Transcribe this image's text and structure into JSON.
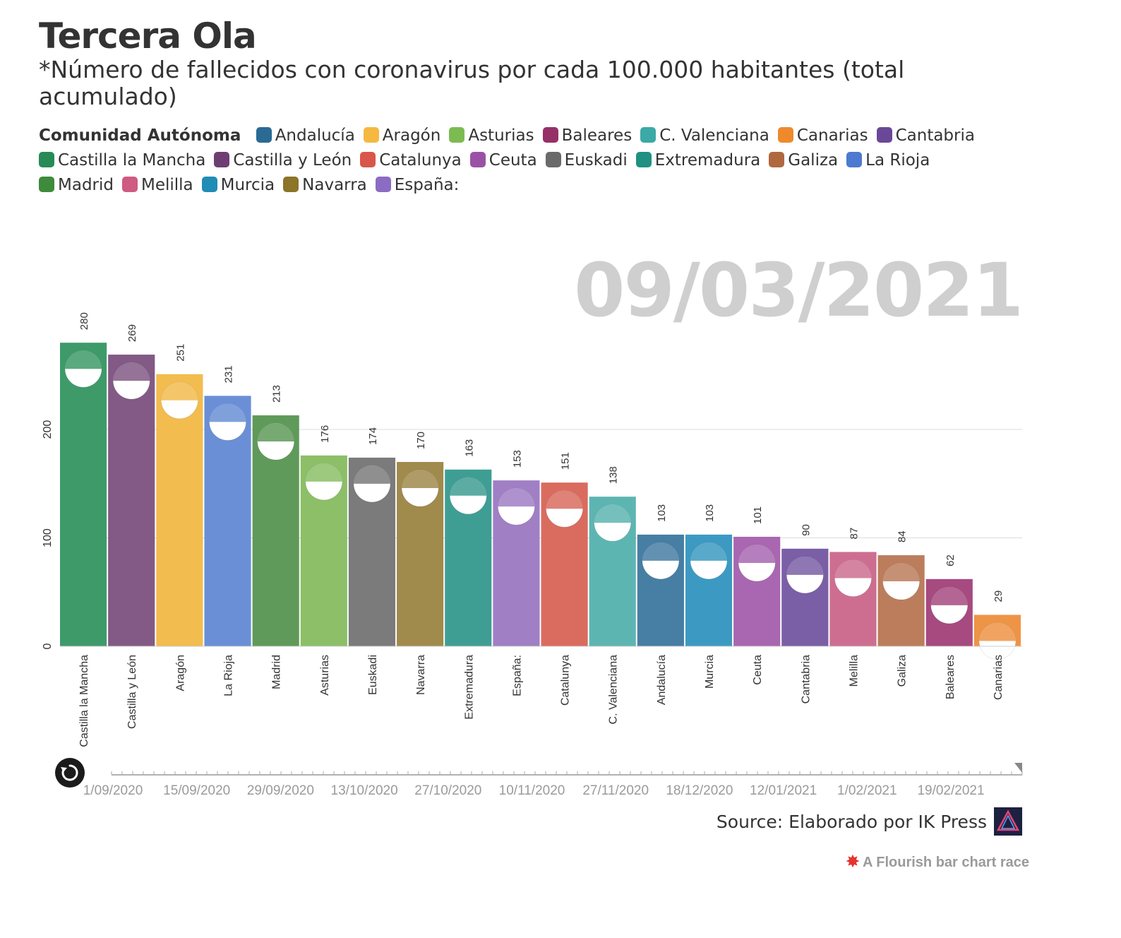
{
  "title": "Tercera Ola",
  "subtitle": "*Número de fallecidos con coronavirus por cada 100.000 habitantes (total acumulado)",
  "legend_title": "Comunidad Autónoma",
  "legend": [
    {
      "name": "Andalucía",
      "color": "#2b6a94"
    },
    {
      "name": "Aragón",
      "color": "#f5b942"
    },
    {
      "name": "Asturias",
      "color": "#7cbb52"
    },
    {
      "name": "Baleares",
      "color": "#963068"
    },
    {
      "name": "C. Valenciana",
      "color": "#3ba9a6"
    },
    {
      "name": "Canarias",
      "color": "#ee8a2c"
    },
    {
      "name": "Cantabria",
      "color": "#6b4897"
    },
    {
      "name": "Castilla la Mancha",
      "color": "#288b56"
    },
    {
      "name": "Castilla y León",
      "color": "#6e3e73"
    },
    {
      "name": "Catalunya",
      "color": "#d9564a"
    },
    {
      "name": "Ceuta",
      "color": "#9a51a5"
    },
    {
      "name": "Euskadi",
      "color": "#6a6a6a"
    },
    {
      "name": "Extremadura",
      "color": "#1f9082"
    },
    {
      "name": "Galiza",
      "color": "#b0683f"
    },
    {
      "name": "La Rioja",
      "color": "#4d79d0"
    },
    {
      "name": "Madrid",
      "color": "#3f8a3b"
    },
    {
      "name": "Melilla",
      "color": "#cf5a82"
    },
    {
      "name": "Murcia",
      "color": "#1f8db5"
    },
    {
      "name": "Navarra",
      "color": "#8c7428"
    },
    {
      "name": "España:",
      "color": "#8c6cc2"
    }
  ],
  "date_label": "09/03/2021",
  "chart_data": {
    "type": "bar",
    "categories": [
      "Castilla la Mancha",
      "Castilla y León",
      "Aragón",
      "La Rioja",
      "Madrid",
      "Asturias",
      "Euskadi",
      "Navarra",
      "Extremadura",
      "España:",
      "Catalunya",
      "C. Valenciana",
      "Andalucía",
      "Murcia",
      "Ceuta",
      "Cantabria",
      "Melilla",
      "Galiza",
      "Baleares",
      "Canarias"
    ],
    "values": [
      280,
      269,
      251,
      231,
      213,
      176,
      174,
      170,
      163,
      153,
      151,
      138,
      103,
      103,
      101,
      90,
      87,
      84,
      62,
      29
    ],
    "colors": [
      "#3e9a69",
      "#835985",
      "#f2bc4f",
      "#6a8fd6",
      "#5f9a5a",
      "#8cbf67",
      "#7b7b7b",
      "#a08a4c",
      "#3f9e94",
      "#a07fc5",
      "#d96c5f",
      "#5db5b2",
      "#477ea4",
      "#3c9ac2",
      "#a867b0",
      "#7a5fa6",
      "#cd6e90",
      "#bc7d5c",
      "#a64a80",
      "#ee9447"
    ],
    "ylim": [
      0,
      300
    ],
    "yticks": [
      0,
      100,
      200
    ],
    "grid": true
  },
  "timeline": {
    "labels": [
      "1/09/2020",
      "15/09/2020",
      "29/09/2020",
      "13/10/2020",
      "27/10/2020",
      "10/11/2020",
      "27/11/2020",
      "18/12/2020",
      "12/01/2021",
      "1/02/2021",
      "19/02/2021"
    ]
  },
  "source_label": "Source: Elaborado por IK Press",
  "flourish_label": "A Flourish bar chart race"
}
